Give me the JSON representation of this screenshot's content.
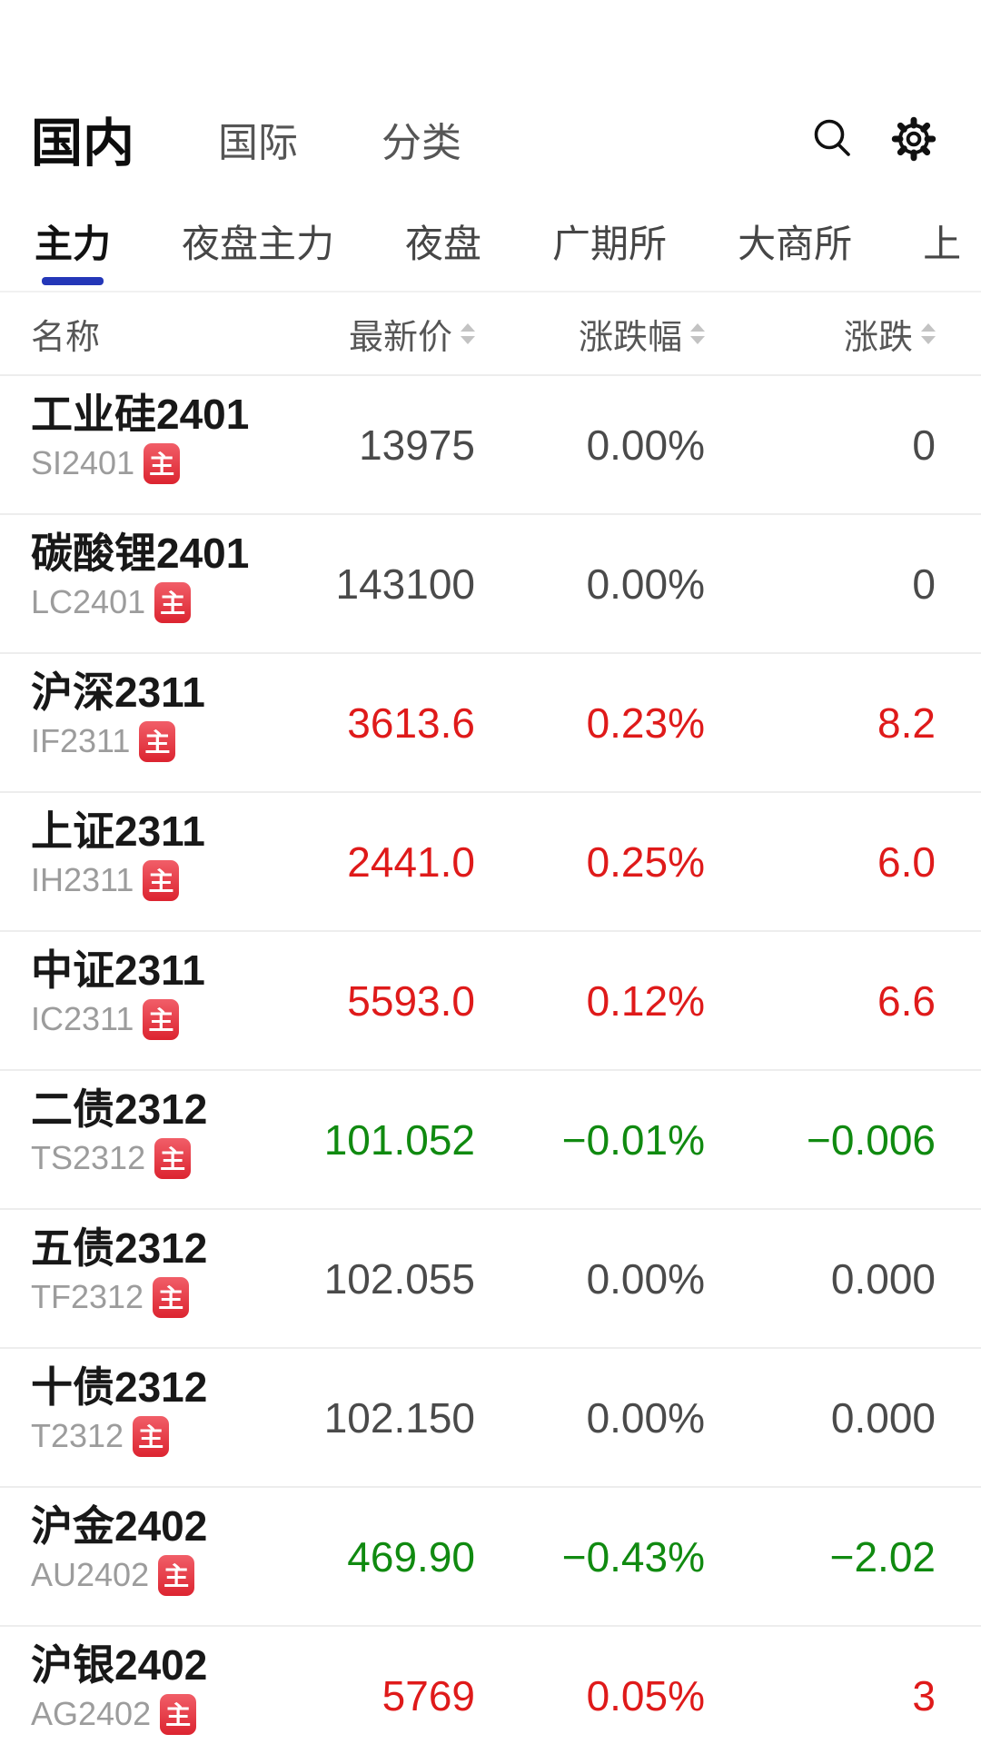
{
  "nav": {
    "items": [
      {
        "label": "国内",
        "active": true
      },
      {
        "label": "国际",
        "active": false
      },
      {
        "label": "分类",
        "active": false
      }
    ]
  },
  "tabs": {
    "items": [
      "主力",
      "夜盘主力",
      "夜盘",
      "广期所",
      "大商所",
      "上"
    ],
    "active_index": 0
  },
  "table": {
    "headers": {
      "name": "名称",
      "price": "最新价",
      "pct": "涨跌幅",
      "chg": "涨跌"
    },
    "rows": [
      {
        "name": "工业硅2401",
        "code": "SI2401",
        "price": "13975",
        "pct": "0.00%",
        "chg": "0",
        "trend": "flat"
      },
      {
        "name": "碳酸锂2401",
        "code": "LC2401",
        "price": "143100",
        "pct": "0.00%",
        "chg": "0",
        "trend": "flat"
      },
      {
        "name": "沪深2311",
        "code": "IF2311",
        "price": "3613.6",
        "pct": "0.23%",
        "chg": "8.2",
        "trend": "up"
      },
      {
        "name": "上证2311",
        "code": "IH2311",
        "price": "2441.0",
        "pct": "0.25%",
        "chg": "6.0",
        "trend": "up"
      },
      {
        "name": "中证2311",
        "code": "IC2311",
        "price": "5593.0",
        "pct": "0.12%",
        "chg": "6.6",
        "trend": "up"
      },
      {
        "name": "二债2312",
        "code": "TS2312",
        "price": "101.052",
        "pct": "−0.01%",
        "chg": "−0.006",
        "trend": "down"
      },
      {
        "name": "五债2312",
        "code": "TF2312",
        "price": "102.055",
        "pct": "0.00%",
        "chg": "0.000",
        "trend": "flat"
      },
      {
        "name": "十债2312",
        "code": "T2312",
        "price": "102.150",
        "pct": "0.00%",
        "chg": "0.000",
        "trend": "flat"
      },
      {
        "name": "沪金2402",
        "code": "AU2402",
        "price": "469.90",
        "pct": "−0.43%",
        "chg": "−2.02",
        "trend": "down"
      },
      {
        "name": "沪银2402",
        "code": "AG2402",
        "price": "5769",
        "pct": "0.05%",
        "chg": "3",
        "trend": "up"
      }
    ]
  },
  "badge_label": "主",
  "colors": {
    "up_red": "#df1a1a",
    "down_green": "#108a10",
    "neutral_gray": "#4a4a4a",
    "accent_blue": "#2437b8",
    "badge_red": "#dc2430"
  }
}
